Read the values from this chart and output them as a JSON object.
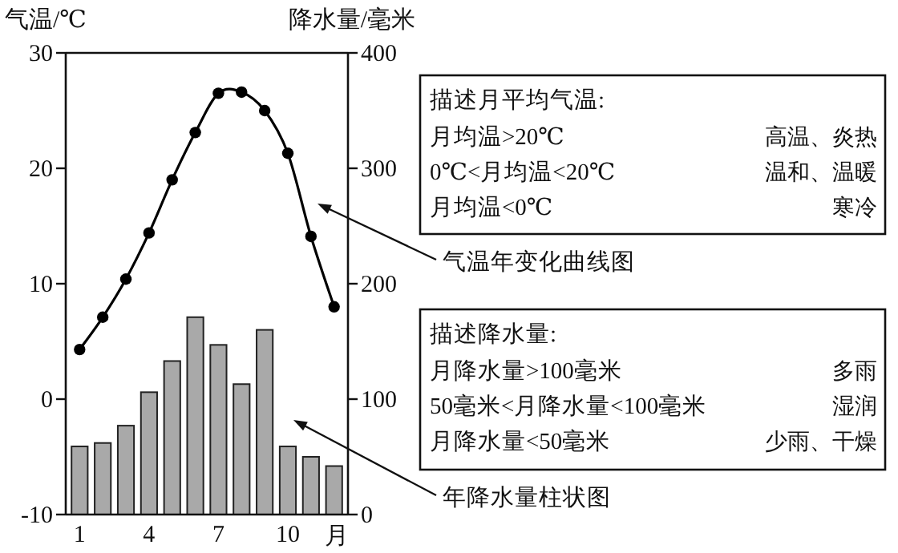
{
  "chart_data": {
    "type": "line",
    "ylabel": "气温/℃",
    "y2label": "降水量/毫米",
    "xlabel": "月",
    "categories": [
      "1",
      null,
      null,
      "4",
      null,
      null,
      "7",
      null,
      null,
      "10",
      null,
      null
    ],
    "series": [
      {
        "type": "bar",
        "axis": "y2",
        "color": "#a9a9a9",
        "values": [
          59,
          62,
          77,
          106,
          133,
          171,
          147,
          113,
          160,
          59,
          50,
          42
        ]
      },
      {
        "color": "#000000",
        "values": [
          4.3,
          7.1,
          10.4,
          14.4,
          19.0,
          23.1,
          26.5,
          26.6,
          25.0,
          21.3,
          14.1,
          8.0
        ]
      }
    ],
    "marker": "circle",
    "line_style": "solid",
    "ylim": [
      -10,
      30
    ],
    "yticks": [
      -10,
      0,
      10,
      20,
      30
    ],
    "y2lim": [
      0,
      400
    ],
    "y2ticks": [
      0,
      100,
      200,
      300,
      400
    ],
    "annotations": [
      "描述月平均气温:",
      "月均温>20℃",
      "0℃<月均温<20℃",
      "月均温<0℃",
      "高温、炎热",
      "温和、温暖",
      "寒冷",
      "气温年变化曲线图",
      "描述降水量:",
      "月降水量>100毫米",
      "50毫米<月降水量<100毫米",
      "月降水量<50毫米",
      "多雨",
      "湿润",
      "少雨、干燥",
      "年降水量柱状图"
    ]
  }
}
